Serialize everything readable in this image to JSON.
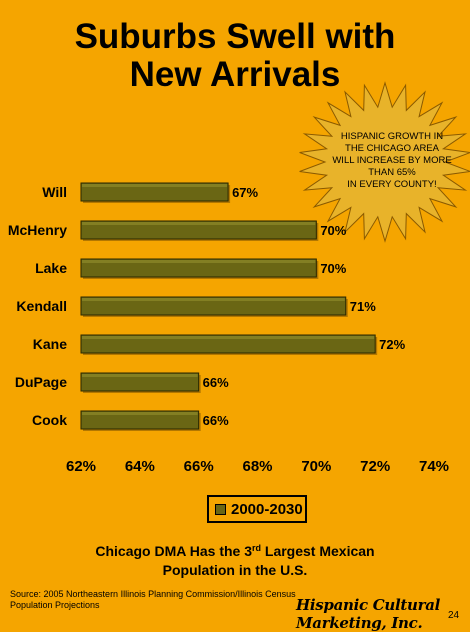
{
  "title": {
    "line1": "Suburbs Swell with",
    "line2": "New Arrivals"
  },
  "callout": {
    "lines": [
      "HISPANIC GROWTH IN",
      "THE CHICAGO AREA",
      "WILL INCREASE BY MORE",
      "THAN 65%",
      "IN EVERY COUNTY!"
    ],
    "fill": "#E8B32A"
  },
  "chart_data": {
    "type": "bar",
    "orientation": "horizontal",
    "categories": [
      "Will",
      "McHenry",
      "Lake",
      "Kendall",
      "Kane",
      "DuPage",
      "Cook"
    ],
    "series": [
      {
        "name": "2000-2030",
        "values": [
          67,
          70,
          70,
          71,
          72,
          66,
          66
        ],
        "color": "#6A6614"
      }
    ],
    "data_labels": [
      "67%",
      "70%",
      "70%",
      "71%",
      "72%",
      "66%",
      "66%"
    ],
    "xlim": [
      62,
      74
    ],
    "xticks": [
      "62%",
      "64%",
      "66%",
      "68%",
      "70%",
      "72%",
      "74%"
    ],
    "xtick_values": [
      62,
      64,
      66,
      68,
      70,
      72,
      74
    ],
    "grid": false,
    "legend_position": "bottom-center"
  },
  "caption": {
    "pre": "Chicago DMA Has the 3",
    "sup": "rd",
    "post": " Largest Mexican",
    "line2": "Population in the U.S."
  },
  "source": "Source: 2005 Northeastern Illinois Planning Commission/Illinois Census Population Projections",
  "logo": "Hispanic Cultural Marketing, Inc.",
  "page_number": "24",
  "colors": {
    "background": "#F5A500",
    "bar": "#6A6614"
  }
}
